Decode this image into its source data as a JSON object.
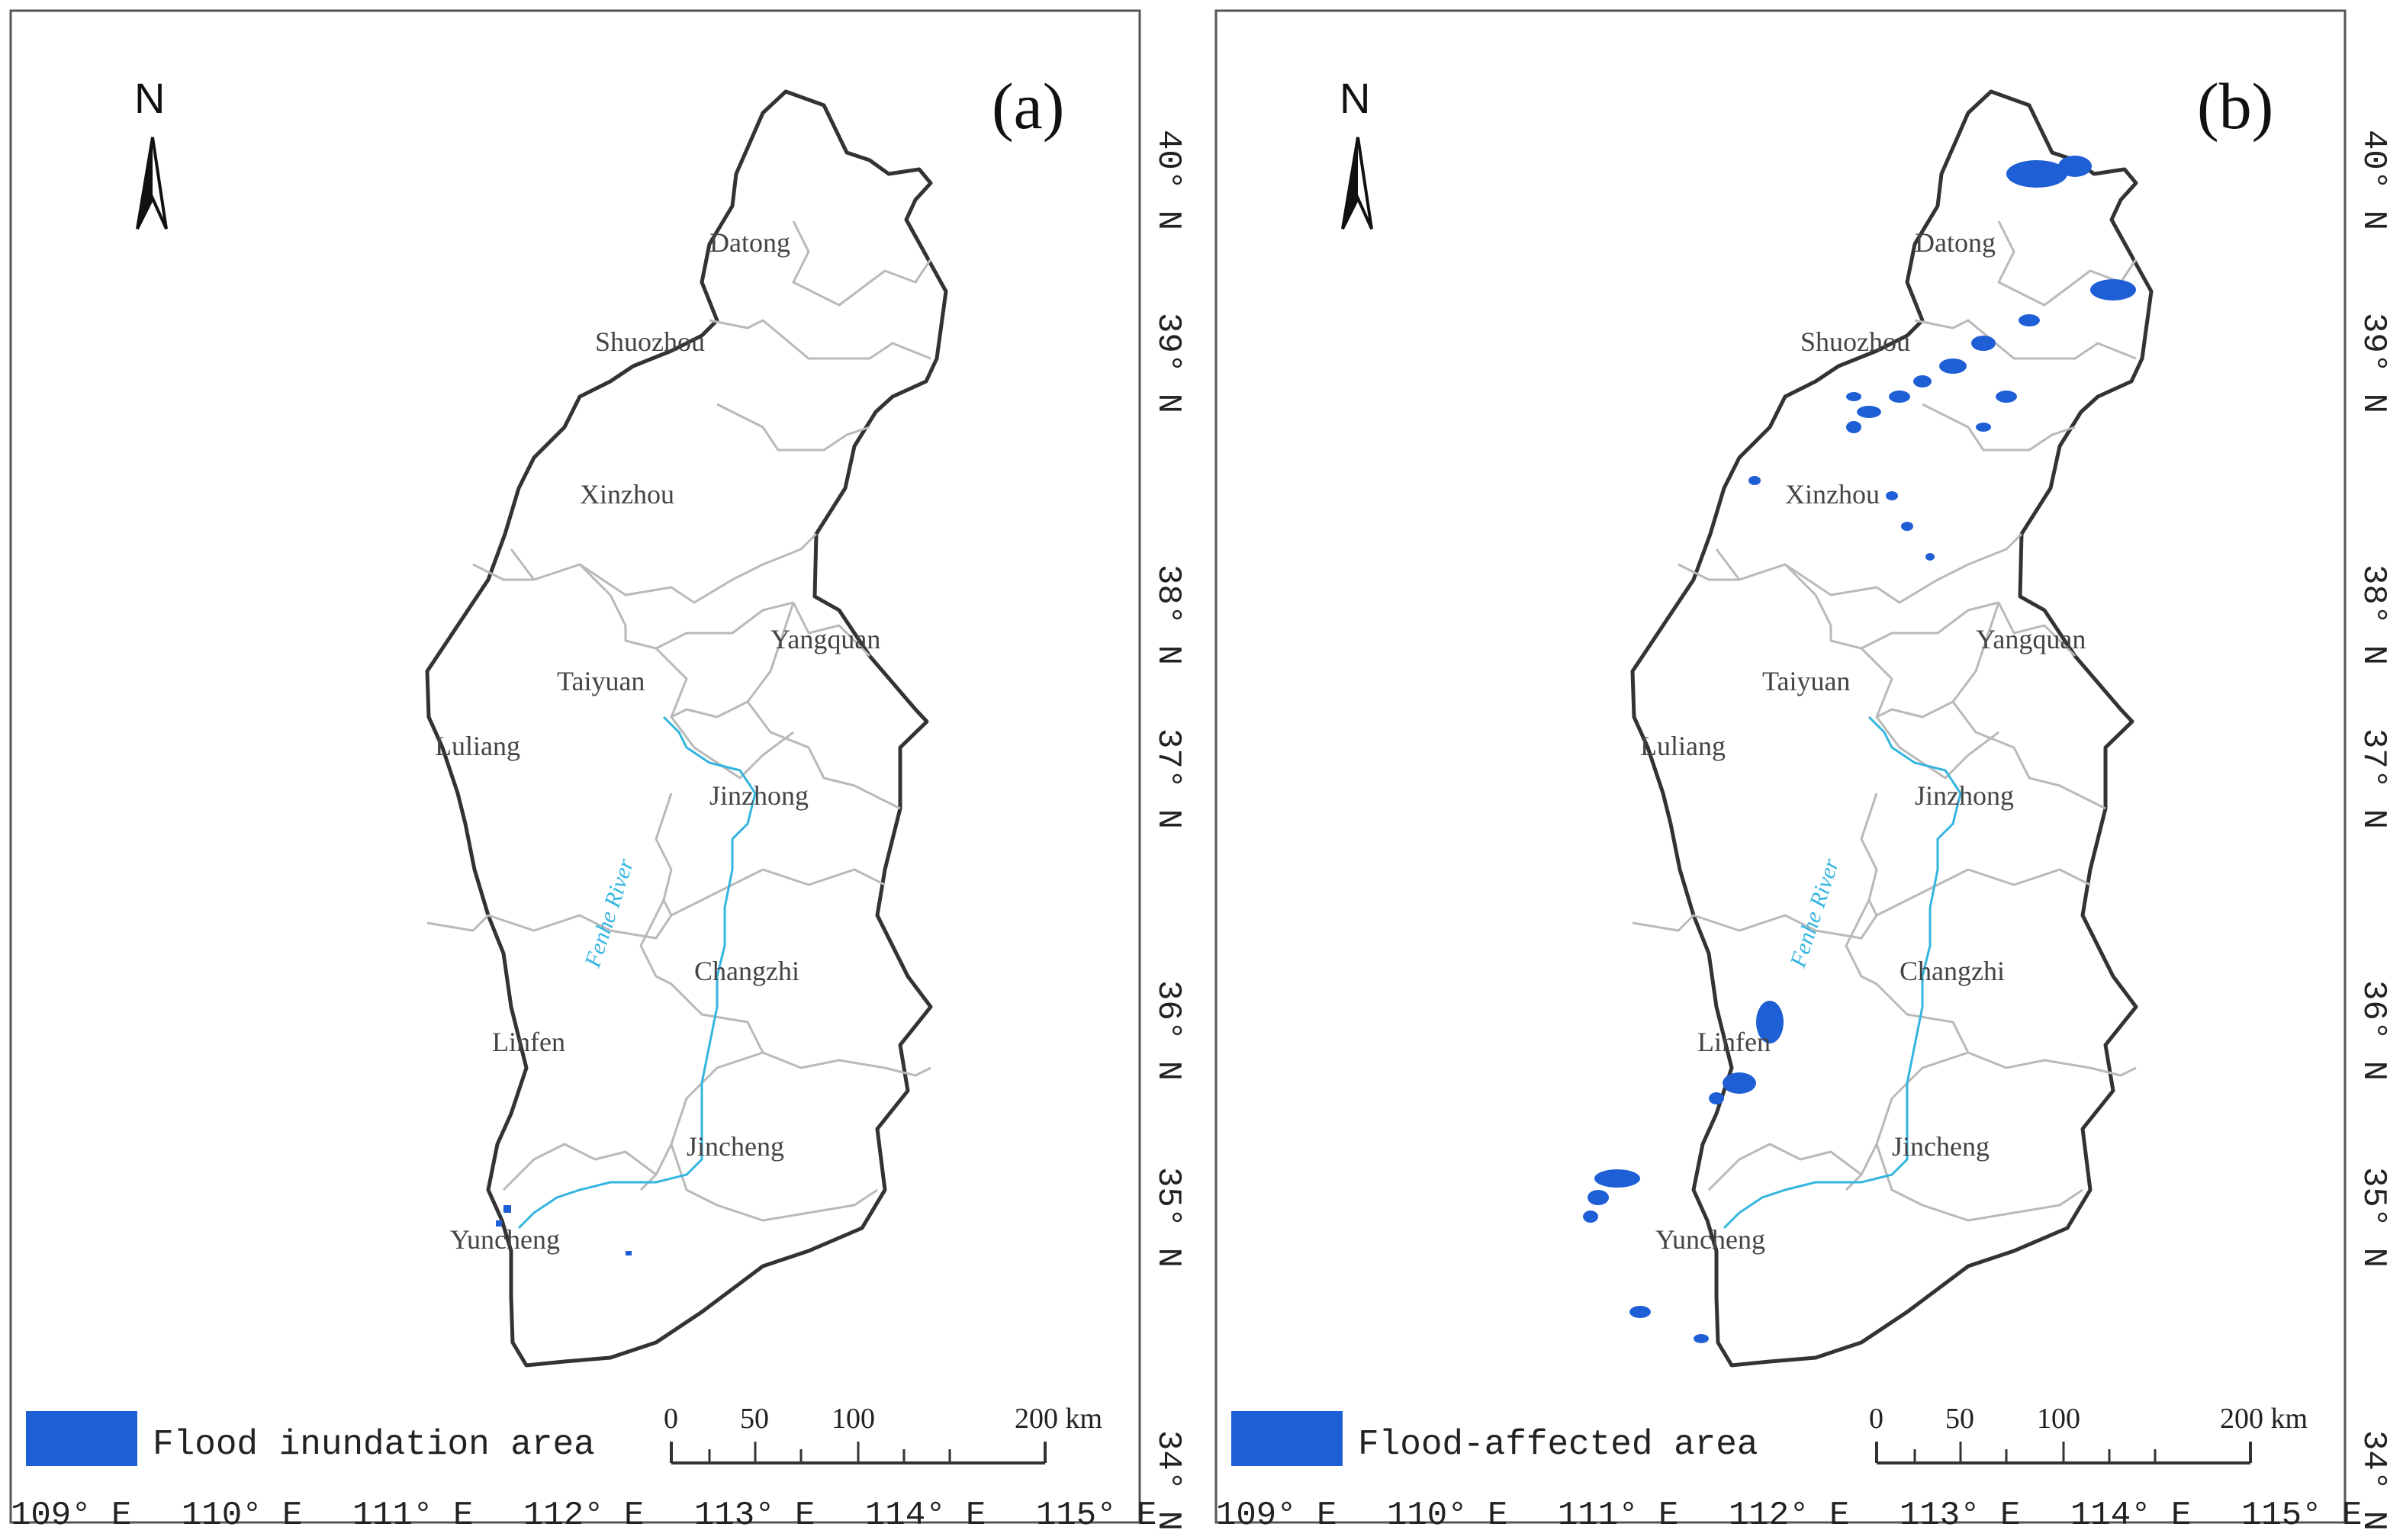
{
  "panels": [
    {
      "id": "a",
      "label": "(a)",
      "legend_label": "Flood inundation area",
      "north_letter": "N",
      "river_label": "Fenhe River",
      "cities": [
        "Datong",
        "Shuozhou",
        "Xinzhou",
        "Yangquan",
        "Taiyuan",
        "Luliang",
        "Jinzhong",
        "Changzhi",
        "Linfen",
        "Jincheng",
        "Yuncheng"
      ],
      "scale": {
        "ticks": [
          "0",
          "50",
          "100",
          "200 km"
        ]
      }
    },
    {
      "id": "b",
      "label": "(b)",
      "legend_label": "Flood-affected area",
      "north_letter": "N",
      "river_label": "Fenhe River",
      "cities": [
        "Datong",
        "Shuozhou",
        "Xinzhou",
        "Yangquan",
        "Taiyuan",
        "Luliang",
        "Jinzhong",
        "Changzhi",
        "Linfen",
        "Jincheng",
        "Yuncheng"
      ],
      "scale": {
        "ticks": [
          "0",
          "50",
          "100",
          "200 km"
        ]
      }
    }
  ],
  "axes": {
    "longitude_labels": [
      "109° E",
      "110° E",
      "111° E",
      "112° E",
      "113° E",
      "114° E",
      "115° E"
    ],
    "latitude_labels": [
      "34° N",
      "35° N",
      "36° N",
      "37° N",
      "38° N",
      "39° N",
      "40° N"
    ]
  },
  "colors": {
    "flood": "#1f5fd6",
    "river": "#33b5e0",
    "outline": "#333333",
    "boundary": "#b9b9b9"
  }
}
